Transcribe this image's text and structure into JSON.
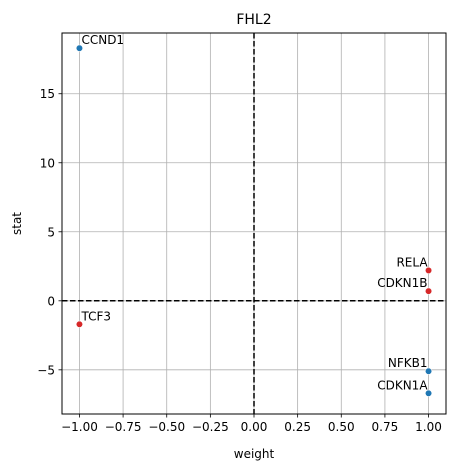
{
  "chart_data": {
    "type": "scatter",
    "title": "FHL2",
    "xlabel": "weight",
    "ylabel": "stat",
    "xlim": [
      -1.1,
      1.1
    ],
    "ylim": [
      -8.2,
      19.4
    ],
    "xticks": [
      -1.0,
      -0.75,
      -0.5,
      -0.25,
      0.0,
      0.25,
      0.5,
      0.75,
      1.0
    ],
    "xtick_labels": [
      "−1.00",
      "−0.75",
      "−0.50",
      "−0.25",
      "0.00",
      "0.25",
      "0.50",
      "0.75",
      "1.00"
    ],
    "yticks": [
      -5,
      0,
      5,
      10,
      15
    ],
    "ytick_labels": [
      "−5",
      "0",
      "5",
      "10",
      "15"
    ],
    "grid": true,
    "reference_lines": {
      "x": 0,
      "y": 0,
      "style": "dashed"
    },
    "colors": {
      "positive": "#1f77b4",
      "negative": "#d62728"
    },
    "points": [
      {
        "label": "CCND1",
        "x": -1.0,
        "y": 18.3,
        "color": "#1f77b4",
        "label_side": "right"
      },
      {
        "label": "RELA",
        "x": 1.0,
        "y": 2.2,
        "color": "#d62728",
        "label_side": "left"
      },
      {
        "label": "CDKN1B",
        "x": 1.0,
        "y": 0.7,
        "color": "#d62728",
        "label_side": "left"
      },
      {
        "label": "TCF3",
        "x": -1.0,
        "y": -1.7,
        "color": "#d62728",
        "label_side": "right"
      },
      {
        "label": "NFKB1",
        "x": 1.0,
        "y": -5.1,
        "color": "#1f77b4",
        "label_side": "left"
      },
      {
        "label": "CDKN1A",
        "x": 1.0,
        "y": -6.7,
        "color": "#1f77b4",
        "label_side": "left"
      }
    ]
  }
}
